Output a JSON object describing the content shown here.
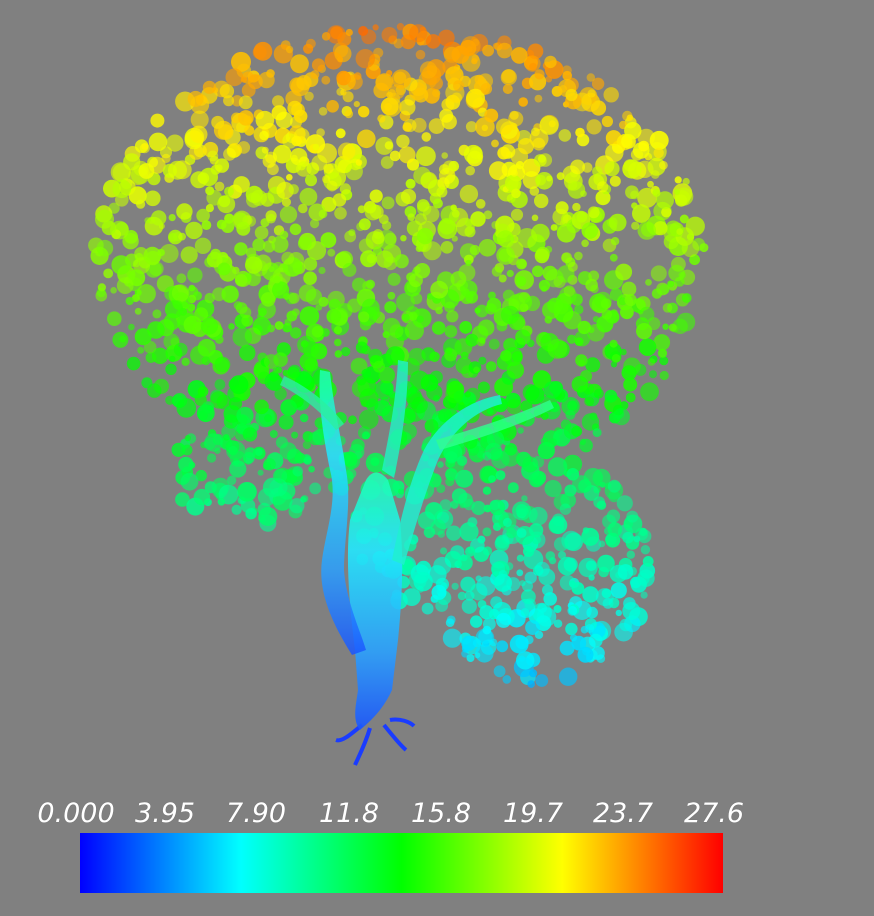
{
  "colorbar": {
    "ticks": [
      "0.000",
      "3.95",
      "7.90",
      "11.8",
      "15.8",
      "19.7",
      "23.7",
      "27.6"
    ],
    "min": 0.0,
    "max": 27.6,
    "colormap": [
      "#0000ff",
      "#00ffff",
      "#00ff00",
      "#ffff00",
      "#ff0000"
    ]
  },
  "scene": {
    "subject": "tree-point-cloud",
    "background": "#808080"
  }
}
